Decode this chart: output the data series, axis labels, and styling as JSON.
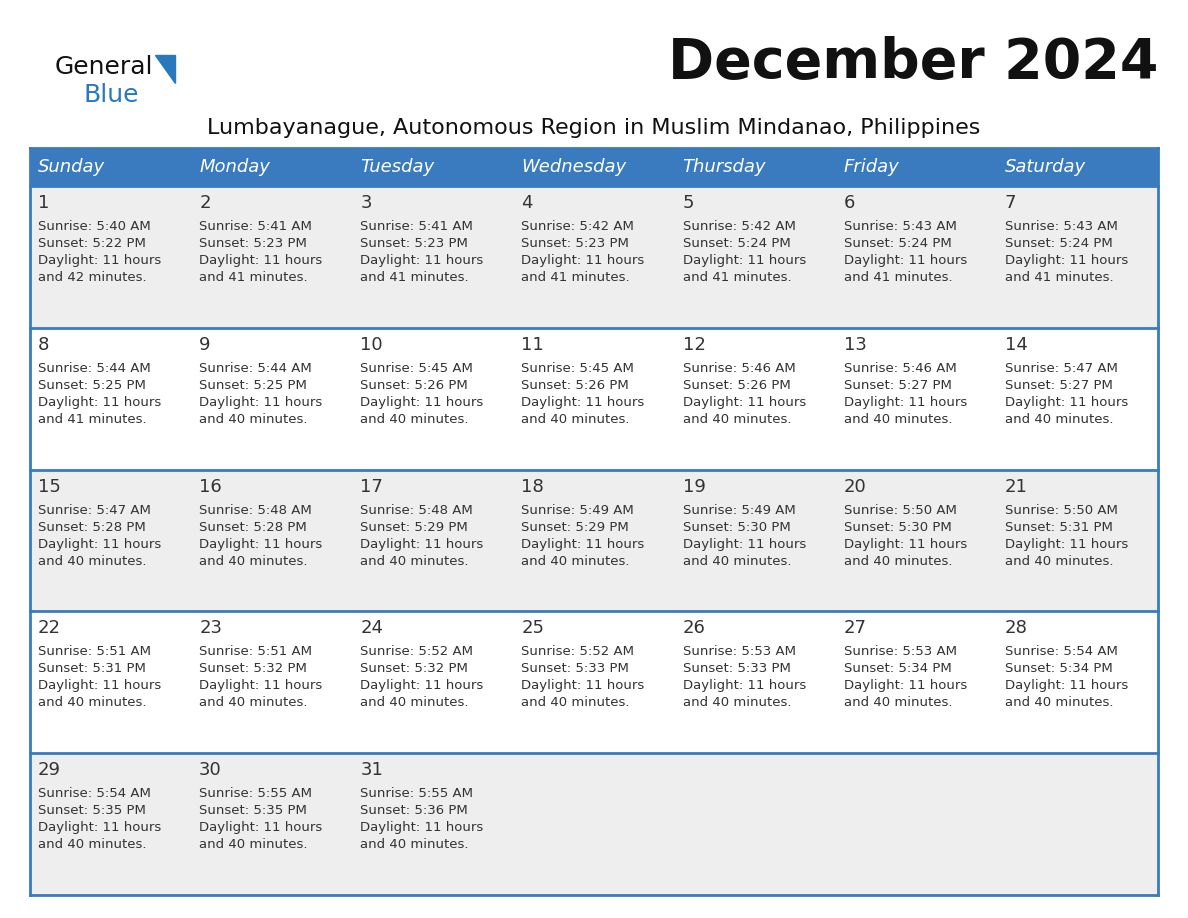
{
  "title": "December 2024",
  "subtitle": "Lumbayanague, Autonomous Region in Muslim Mindanao, Philippines",
  "header_bg_color": "#3a7abf",
  "header_text_color": "#ffffff",
  "cell_bg_even": "#eeeeee",
  "cell_bg_odd": "#ffffff",
  "border_color": "#3a7abf",
  "day_names": [
    "Sunday",
    "Monday",
    "Tuesday",
    "Wednesday",
    "Thursday",
    "Friday",
    "Saturday"
  ],
  "title_color": "#111111",
  "subtitle_color": "#111111",
  "logo_general_color": "#111111",
  "logo_blue_color": "#2878be",
  "logo_triangle_color": "#2878be",
  "days": [
    {
      "day": 1,
      "col": 0,
      "row": 0,
      "sunrise": "5:40 AM",
      "sunset": "5:22 PM",
      "daylight_hours": 11,
      "daylight_minutes": 42
    },
    {
      "day": 2,
      "col": 1,
      "row": 0,
      "sunrise": "5:41 AM",
      "sunset": "5:23 PM",
      "daylight_hours": 11,
      "daylight_minutes": 41
    },
    {
      "day": 3,
      "col": 2,
      "row": 0,
      "sunrise": "5:41 AM",
      "sunset": "5:23 PM",
      "daylight_hours": 11,
      "daylight_minutes": 41
    },
    {
      "day": 4,
      "col": 3,
      "row": 0,
      "sunrise": "5:42 AM",
      "sunset": "5:23 PM",
      "daylight_hours": 11,
      "daylight_minutes": 41
    },
    {
      "day": 5,
      "col": 4,
      "row": 0,
      "sunrise": "5:42 AM",
      "sunset": "5:24 PM",
      "daylight_hours": 11,
      "daylight_minutes": 41
    },
    {
      "day": 6,
      "col": 5,
      "row": 0,
      "sunrise": "5:43 AM",
      "sunset": "5:24 PM",
      "daylight_hours": 11,
      "daylight_minutes": 41
    },
    {
      "day": 7,
      "col": 6,
      "row": 0,
      "sunrise": "5:43 AM",
      "sunset": "5:24 PM",
      "daylight_hours": 11,
      "daylight_minutes": 41
    },
    {
      "day": 8,
      "col": 0,
      "row": 1,
      "sunrise": "5:44 AM",
      "sunset": "5:25 PM",
      "daylight_hours": 11,
      "daylight_minutes": 41
    },
    {
      "day": 9,
      "col": 1,
      "row": 1,
      "sunrise": "5:44 AM",
      "sunset": "5:25 PM",
      "daylight_hours": 11,
      "daylight_minutes": 40
    },
    {
      "day": 10,
      "col": 2,
      "row": 1,
      "sunrise": "5:45 AM",
      "sunset": "5:26 PM",
      "daylight_hours": 11,
      "daylight_minutes": 40
    },
    {
      "day": 11,
      "col": 3,
      "row": 1,
      "sunrise": "5:45 AM",
      "sunset": "5:26 PM",
      "daylight_hours": 11,
      "daylight_minutes": 40
    },
    {
      "day": 12,
      "col": 4,
      "row": 1,
      "sunrise": "5:46 AM",
      "sunset": "5:26 PM",
      "daylight_hours": 11,
      "daylight_minutes": 40
    },
    {
      "day": 13,
      "col": 5,
      "row": 1,
      "sunrise": "5:46 AM",
      "sunset": "5:27 PM",
      "daylight_hours": 11,
      "daylight_minutes": 40
    },
    {
      "day": 14,
      "col": 6,
      "row": 1,
      "sunrise": "5:47 AM",
      "sunset": "5:27 PM",
      "daylight_hours": 11,
      "daylight_minutes": 40
    },
    {
      "day": 15,
      "col": 0,
      "row": 2,
      "sunrise": "5:47 AM",
      "sunset": "5:28 PM",
      "daylight_hours": 11,
      "daylight_minutes": 40
    },
    {
      "day": 16,
      "col": 1,
      "row": 2,
      "sunrise": "5:48 AM",
      "sunset": "5:28 PM",
      "daylight_hours": 11,
      "daylight_minutes": 40
    },
    {
      "day": 17,
      "col": 2,
      "row": 2,
      "sunrise": "5:48 AM",
      "sunset": "5:29 PM",
      "daylight_hours": 11,
      "daylight_minutes": 40
    },
    {
      "day": 18,
      "col": 3,
      "row": 2,
      "sunrise": "5:49 AM",
      "sunset": "5:29 PM",
      "daylight_hours": 11,
      "daylight_minutes": 40
    },
    {
      "day": 19,
      "col": 4,
      "row": 2,
      "sunrise": "5:49 AM",
      "sunset": "5:30 PM",
      "daylight_hours": 11,
      "daylight_minutes": 40
    },
    {
      "day": 20,
      "col": 5,
      "row": 2,
      "sunrise": "5:50 AM",
      "sunset": "5:30 PM",
      "daylight_hours": 11,
      "daylight_minutes": 40
    },
    {
      "day": 21,
      "col": 6,
      "row": 2,
      "sunrise": "5:50 AM",
      "sunset": "5:31 PM",
      "daylight_hours": 11,
      "daylight_minutes": 40
    },
    {
      "day": 22,
      "col": 0,
      "row": 3,
      "sunrise": "5:51 AM",
      "sunset": "5:31 PM",
      "daylight_hours": 11,
      "daylight_minutes": 40
    },
    {
      "day": 23,
      "col": 1,
      "row": 3,
      "sunrise": "5:51 AM",
      "sunset": "5:32 PM",
      "daylight_hours": 11,
      "daylight_minutes": 40
    },
    {
      "day": 24,
      "col": 2,
      "row": 3,
      "sunrise": "5:52 AM",
      "sunset": "5:32 PM",
      "daylight_hours": 11,
      "daylight_minutes": 40
    },
    {
      "day": 25,
      "col": 3,
      "row": 3,
      "sunrise": "5:52 AM",
      "sunset": "5:33 PM",
      "daylight_hours": 11,
      "daylight_minutes": 40
    },
    {
      "day": 26,
      "col": 4,
      "row": 3,
      "sunrise": "5:53 AM",
      "sunset": "5:33 PM",
      "daylight_hours": 11,
      "daylight_minutes": 40
    },
    {
      "day": 27,
      "col": 5,
      "row": 3,
      "sunrise": "5:53 AM",
      "sunset": "5:34 PM",
      "daylight_hours": 11,
      "daylight_minutes": 40
    },
    {
      "day": 28,
      "col": 6,
      "row": 3,
      "sunrise": "5:54 AM",
      "sunset": "5:34 PM",
      "daylight_hours": 11,
      "daylight_minutes": 40
    },
    {
      "day": 29,
      "col": 0,
      "row": 4,
      "sunrise": "5:54 AM",
      "sunset": "5:35 PM",
      "daylight_hours": 11,
      "daylight_minutes": 40
    },
    {
      "day": 30,
      "col": 1,
      "row": 4,
      "sunrise": "5:55 AM",
      "sunset": "5:35 PM",
      "daylight_hours": 11,
      "daylight_minutes": 40
    },
    {
      "day": 31,
      "col": 2,
      "row": 4,
      "sunrise": "5:55 AM",
      "sunset": "5:36 PM",
      "daylight_hours": 11,
      "daylight_minutes": 40
    }
  ]
}
